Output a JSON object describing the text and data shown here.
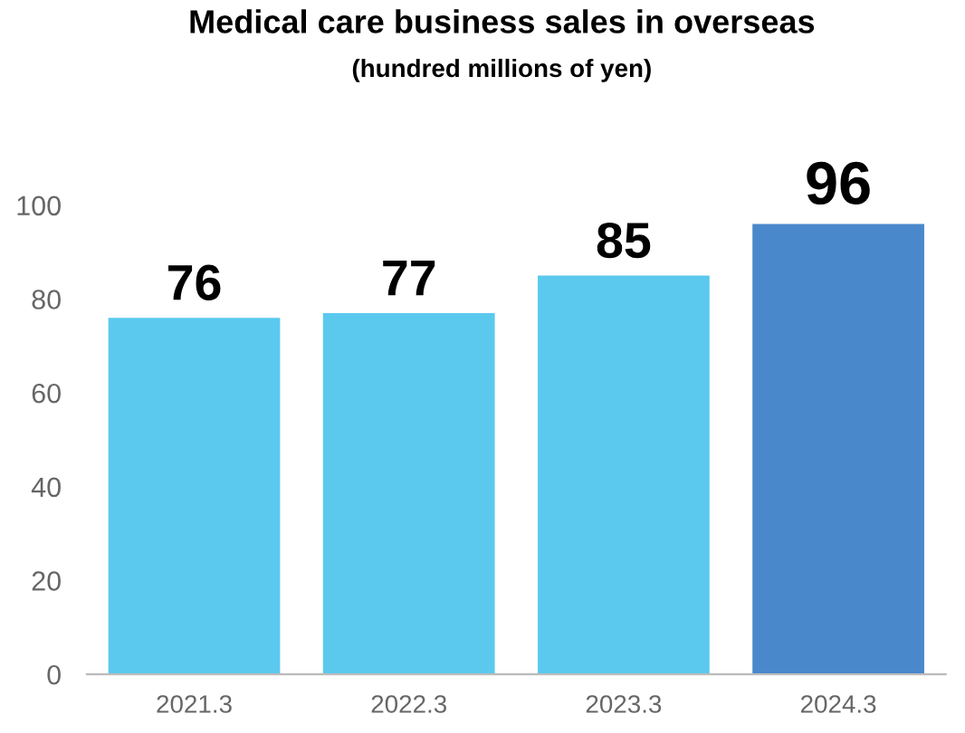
{
  "chart_data": {
    "type": "bar",
    "title": "Medical care business sales in overseas",
    "subtitle": "(hundred millions of yen)",
    "categories": [
      "2021.3",
      "2022.3",
      "2023.3",
      "2024.3"
    ],
    "values": [
      76,
      77,
      85,
      96
    ],
    "colors": [
      "#5bc9ee",
      "#5bc9ee",
      "#5bc9ee",
      "#4a88cc"
    ],
    "ylim": [
      0,
      100
    ],
    "yticks": [
      0,
      20,
      40,
      60,
      80,
      100
    ],
    "grid": false,
    "data_labels": true
  }
}
